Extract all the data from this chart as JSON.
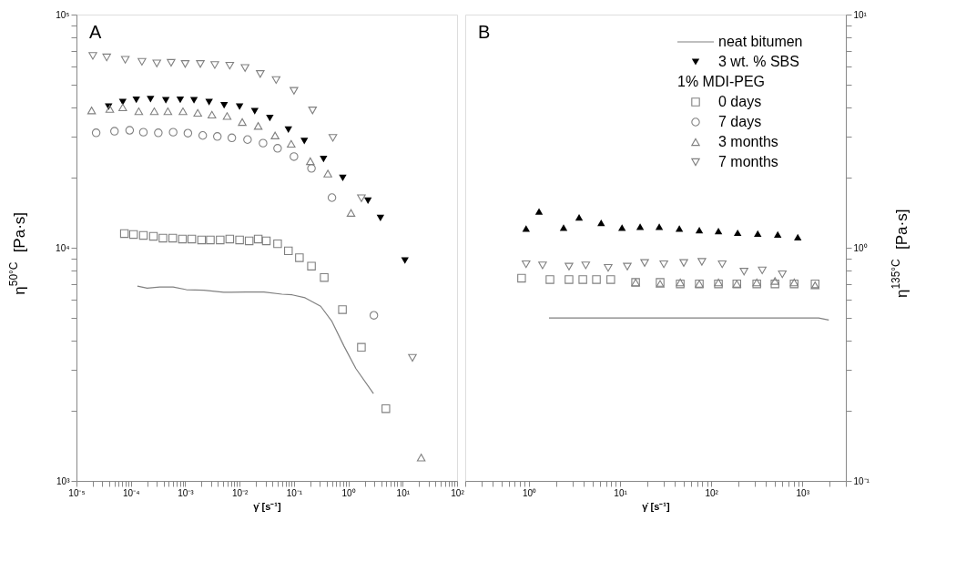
{
  "chart_data": [
    {
      "type": "scatter",
      "title": "A",
      "xlabel": "γ̇  [s⁻¹]",
      "ylabel": "η$^{50°C}$  [Pa·s]",
      "log": "xy",
      "legend": "right",
      "legend_title": "1% MDI-PEG",
      "xlim": [
        1e-05,
        100
      ],
      "ylim": [
        1000,
        100000
      ],
      "xticks": [
        {
          "value": 1e-05,
          "label": "10⁻⁵"
        },
        {
          "value": 2e-05,
          "label": null
        },
        {
          "value": 3e-05,
          "label": null
        },
        {
          "value": 4e-05,
          "label": null
        },
        {
          "value": 5e-05,
          "label": null
        },
        {
          "value": 6e-05,
          "label": null
        },
        {
          "value": 7e-05,
          "label": null
        },
        {
          "value": 8e-05,
          "label": null
        },
        {
          "value": 9e-05,
          "label": null
        },
        {
          "value": 0.0001,
          "label": "10⁻⁴"
        },
        {
          "value": 0.0002,
          "label": null
        },
        {
          "value": 0.0003,
          "label": null
        },
        {
          "value": 0.0004,
          "label": null
        },
        {
          "value": 0.0005,
          "label": null
        },
        {
          "value": 0.0006,
          "label": null
        },
        {
          "value": 0.0007,
          "label": null
        },
        {
          "value": 0.0008,
          "label": null
        },
        {
          "value": 0.0009,
          "label": null
        },
        {
          "value": 0.001,
          "label": "10⁻³"
        },
        {
          "value": 0.002,
          "label": null
        },
        {
          "value": 0.003,
          "label": null
        },
        {
          "value": 0.004,
          "label": null
        },
        {
          "value": 0.005,
          "label": null
        },
        {
          "value": 0.006,
          "label": null
        },
        {
          "value": 0.007,
          "label": null
        },
        {
          "value": 0.008,
          "label": null
        },
        {
          "value": 0.009,
          "label": null
        },
        {
          "value": 0.01,
          "label": "10⁻²"
        },
        {
          "value": 0.02,
          "label": null
        },
        {
          "value": 0.03,
          "label": null
        },
        {
          "value": 0.04,
          "label": null
        },
        {
          "value": 0.05,
          "label": null
        },
        {
          "value": 0.06,
          "label": null
        },
        {
          "value": 0.07,
          "label": null
        },
        {
          "value": 0.08,
          "label": null
        },
        {
          "value": 0.09,
          "label": null
        },
        {
          "value": 0.1,
          "label": "10⁻¹"
        },
        {
          "value": 0.2,
          "label": null
        },
        {
          "value": 0.3,
          "label": null
        },
        {
          "value": 0.4,
          "label": null
        },
        {
          "value": 0.5,
          "label": null
        },
        {
          "value": 0.6,
          "label": null
        },
        {
          "value": 0.7,
          "label": null
        },
        {
          "value": 0.8,
          "label": null
        },
        {
          "value": 0.9,
          "label": null
        },
        {
          "value": 1,
          "label": "10⁰"
        },
        {
          "value": 2,
          "label": null
        },
        {
          "value": 3,
          "label": null
        },
        {
          "value": 4,
          "label": null
        },
        {
          "value": 5,
          "label": null
        },
        {
          "value": 6,
          "label": null
        },
        {
          "value": 7,
          "label": null
        },
        {
          "value": 8,
          "label": null
        },
        {
          "value": 9,
          "label": null
        },
        {
          "value": 10,
          "label": "10¹"
        },
        {
          "value": 20,
          "label": null
        },
        {
          "value": 30,
          "label": null
        },
        {
          "value": 40,
          "label": null
        },
        {
          "value": 50,
          "label": null
        },
        {
          "value": 60,
          "label": null
        },
        {
          "value": 70,
          "label": null
        },
        {
          "value": 80,
          "label": null
        },
        {
          "value": 90,
          "label": null
        },
        {
          "value": 100,
          "label": "10²"
        }
      ],
      "yticks": [
        {
          "value": 1000,
          "label": "10³"
        },
        {
          "value": 2000,
          "label": null
        },
        {
          "value": 3000,
          "label": null
        },
        {
          "value": 4000,
          "label": null
        },
        {
          "value": 5000,
          "label": null
        },
        {
          "value": 6000,
          "label": null
        },
        {
          "value": 7000,
          "label": null
        },
        {
          "value": 8000,
          "label": null
        },
        {
          "value": 9000,
          "label": null
        },
        {
          "value": 10000,
          "label": "10⁴"
        },
        {
          "value": 20000,
          "label": null
        },
        {
          "value": 30000,
          "label": null
        },
        {
          "value": 40000,
          "label": null
        },
        {
          "value": 50000,
          "label": null
        },
        {
          "value": 60000,
          "label": null
        },
        {
          "value": 70000,
          "label": null
        },
        {
          "value": 80000,
          "label": null
        },
        {
          "value": 90000,
          "label": null
        },
        {
          "value": 100000,
          "label": "10⁵"
        }
      ],
      "series": [
        {
          "name": "neat bitumen",
          "type": "line",
          "color": "#808080",
          "line_style": "solid",
          "x": [
            0.000132,
            0.0002,
            0.00034,
            0.0006,
            0.00105,
            0.0022,
            0.0051,
            0.013,
            0.028,
            0.06,
            0.093,
            0.16,
            0.31,
            0.5,
            0.83,
            1.38,
            2.9
          ],
          "values": [
            6850,
            6710,
            6780,
            6780,
            6610,
            6580,
            6440,
            6460,
            6460,
            6320,
            6280,
            6100,
            5610,
            4830,
            3790,
            3030,
            2370
          ]
        },
        {
          "name": "3 wt. % SBS",
          "color": "#000000",
          "marker": "triangle-down",
          "x": [
            3.9e-05,
            7.1e-05,
            0.000126,
            0.00023,
            0.00044,
            0.00081,
            0.00145,
            0.00275,
            0.0052,
            0.01,
            0.019,
            0.036,
            0.079,
            0.155,
            0.35,
            0.79,
            2.3,
            3.9,
            11
          ],
          "values": [
            40300,
            42100,
            43100,
            43400,
            42900,
            43100,
            42900,
            42100,
            40800,
            40300,
            38500,
            36000,
            32100,
            28700,
            24000,
            19900,
            15900,
            13400,
            8800
          ]
        },
        {
          "name": "0 days",
          "color": "#808080",
          "marker": "square",
          "x": [
            7.6e-05,
            0.000112,
            0.00017,
            0.00026,
            0.00039,
            0.00059,
            0.00089,
            0.00132,
            0.002,
            0.0029,
            0.0044,
            0.0066,
            0.01,
            0.015,
            0.022,
            0.031,
            0.05,
            0.079,
            0.126,
            0.21,
            0.36,
            0.78,
            1.74,
            4.9
          ],
          "values": [
            11500,
            11400,
            11300,
            11200,
            11000,
            11000,
            10900,
            10900,
            10800,
            10800,
            10800,
            10900,
            10800,
            10700,
            10900,
            10700,
            10400,
            9700,
            9060,
            8340,
            7450,
            5430,
            3740,
            2040
          ]
        },
        {
          "name": "7 days",
          "color": "#808080",
          "marker": "circle",
          "x": [
            2.3e-05,
            5e-05,
            9.5e-05,
            0.00017,
            0.00032,
            0.0006,
            0.00112,
            0.0021,
            0.0039,
            0.0072,
            0.014,
            0.027,
            0.05,
            0.1,
            0.21,
            0.5,
            2.95
          ],
          "values": [
            31100,
            31600,
            31900,
            31300,
            31100,
            31300,
            31000,
            30300,
            30000,
            29600,
            29100,
            28100,
            26700,
            24600,
            21900,
            16400,
            5130
          ]
        },
        {
          "name": "3 months",
          "color": "#808080",
          "marker": "triangle",
          "x": [
            1.9e-05,
            4.1e-05,
            7.1e-05,
            0.00014,
            0.00027,
            0.00048,
            0.00091,
            0.0017,
            0.0031,
            0.0059,
            0.0112,
            0.022,
            0.045,
            0.089,
            0.2,
            0.42,
            1.12,
            21.9
          ],
          "values": [
            38800,
            39400,
            40000,
            38500,
            38500,
            38500,
            38500,
            37900,
            37200,
            36700,
            34600,
            33300,
            30300,
            27900,
            23500,
            20800,
            14100,
            1260
          ]
        },
        {
          "name": "7 months",
          "color": "#808080",
          "marker": "triangle-down",
          "x": [
            2e-05,
            3.6e-05,
            7.9e-05,
            0.00016,
            0.0003,
            0.00055,
            0.001,
            0.0019,
            0.0035,
            0.0066,
            0.0126,
            0.024,
            0.047,
            0.1,
            0.22,
            0.52,
            1.74,
            15.1
          ],
          "values": [
            66500,
            65500,
            64000,
            62700,
            61700,
            62100,
            61400,
            61400,
            60800,
            60400,
            59000,
            55600,
            52400,
            47100,
            38800,
            29600,
            16300,
            3370
          ]
        }
      ]
    },
    {
      "type": "scatter",
      "title": "B",
      "xlabel": "γ̇  [s⁻¹]",
      "ylabel": "η$^{135°C}$  [Pa·s]",
      "log": "xy",
      "xlim": [
        0.2,
        3000
      ],
      "ylim": [
        0.1,
        10
      ],
      "xticks": [
        {
          "value": 0.2,
          "label": null
        },
        {
          "value": 0.3,
          "label": null
        },
        {
          "value": 0.4,
          "label": null
        },
        {
          "value": 0.5,
          "label": null
        },
        {
          "value": 0.6,
          "label": null
        },
        {
          "value": 0.7,
          "label": null
        },
        {
          "value": 0.8,
          "label": null
        },
        {
          "value": 0.9,
          "label": null
        },
        {
          "value": 1,
          "label": "10⁰"
        },
        {
          "value": 2,
          "label": null
        },
        {
          "value": 3,
          "label": null
        },
        {
          "value": 4,
          "label": null
        },
        {
          "value": 5,
          "label": null
        },
        {
          "value": 6,
          "label": null
        },
        {
          "value": 7,
          "label": null
        },
        {
          "value": 8,
          "label": null
        },
        {
          "value": 9,
          "label": null
        },
        {
          "value": 10,
          "label": "10¹"
        },
        {
          "value": 20,
          "label": null
        },
        {
          "value": 30,
          "label": null
        },
        {
          "value": 40,
          "label": null
        },
        {
          "value": 50,
          "label": null
        },
        {
          "value": 60,
          "label": null
        },
        {
          "value": 70,
          "label": null
        },
        {
          "value": 80,
          "label": null
        },
        {
          "value": 90,
          "label": null
        },
        {
          "value": 100,
          "label": "10²"
        },
        {
          "value": 200,
          "label": null
        },
        {
          "value": 300,
          "label": null
        },
        {
          "value": 400,
          "label": null
        },
        {
          "value": 500,
          "label": null
        },
        {
          "value": 600,
          "label": null
        },
        {
          "value": 700,
          "label": null
        },
        {
          "value": 800,
          "label": null
        },
        {
          "value": 900,
          "label": null
        },
        {
          "value": 1000,
          "label": "10³"
        },
        {
          "value": 2000,
          "label": null
        },
        {
          "value": 3000,
          "label": null
        }
      ],
      "yticks": [
        {
          "value": 0.1,
          "label": "10⁻¹"
        },
        {
          "value": 0.2,
          "label": null
        },
        {
          "value": 0.3,
          "label": null
        },
        {
          "value": 0.4,
          "label": null
        },
        {
          "value": 0.5,
          "label": null
        },
        {
          "value": 0.6,
          "label": null
        },
        {
          "value": 0.7,
          "label": null
        },
        {
          "value": 0.8,
          "label": null
        },
        {
          "value": 0.9,
          "label": null
        },
        {
          "value": 1,
          "label": "10⁰"
        },
        {
          "value": 2,
          "label": null
        },
        {
          "value": 3,
          "label": null
        },
        {
          "value": 4,
          "label": null
        },
        {
          "value": 5,
          "label": null
        },
        {
          "value": 6,
          "label": null
        },
        {
          "value": 7,
          "label": null
        },
        {
          "value": 8,
          "label": null
        },
        {
          "value": 9,
          "label": null
        },
        {
          "value": 10,
          "label": "10¹"
        }
      ],
      "series": [
        {
          "type": "line",
          "color": "#808080",
          "line_style": "solid",
          "x": [
            1.66,
            10,
            100,
            1510,
            1950
          ],
          "values": [
            0.5,
            0.5,
            0.5,
            0.5,
            0.49
          ]
        },
        {
          "color": "#000000",
          "marker": "triangle",
          "x": [
            0.93,
            1.29,
            2.4,
            3.55,
            6.2,
            10.5,
            16.6,
            26.9,
            44.7,
            74,
            120,
            195,
            324,
            537,
            891
          ],
          "values": [
            1.21,
            1.43,
            1.22,
            1.35,
            1.28,
            1.22,
            1.23,
            1.23,
            1.21,
            1.19,
            1.18,
            1.16,
            1.15,
            1.14,
            1.11
          ]
        },
        {
          "color": "#808080",
          "marker": "square",
          "x": [
            0.83,
            1.7,
            2.75,
            3.9,
            5.5,
            7.9,
            14.8,
            27.5,
            45.7,
            74,
            120,
            191,
            316,
            501,
            813,
            1380
          ],
          "values": [
            0.74,
            0.73,
            0.73,
            0.73,
            0.73,
            0.73,
            0.71,
            0.71,
            0.7,
            0.7,
            0.7,
            0.7,
            0.7,
            0.7,
            0.7,
            0.7
          ]
        },
        {
          "color": "#808080",
          "marker": "triangle",
          "x": [
            14.8,
            27.5,
            45.7,
            74,
            120,
            191,
            316,
            501,
            813,
            1380
          ],
          "values": [
            0.71,
            0.7,
            0.71,
            0.7,
            0.71,
            0.7,
            0.71,
            0.72,
            0.71,
            0.69
          ]
        },
        {
          "color": "#808080",
          "marker": "triangle-down",
          "x": [
            0.93,
            1.41,
            2.75,
            4.2,
            7.4,
            12,
            18.6,
            30.2,
            50,
            79,
            132,
            229,
            363,
            603
          ],
          "values": [
            0.85,
            0.84,
            0.83,
            0.84,
            0.82,
            0.83,
            0.86,
            0.85,
            0.86,
            0.87,
            0.85,
            0.79,
            0.8,
            0.77
          ]
        }
      ]
    }
  ]
}
